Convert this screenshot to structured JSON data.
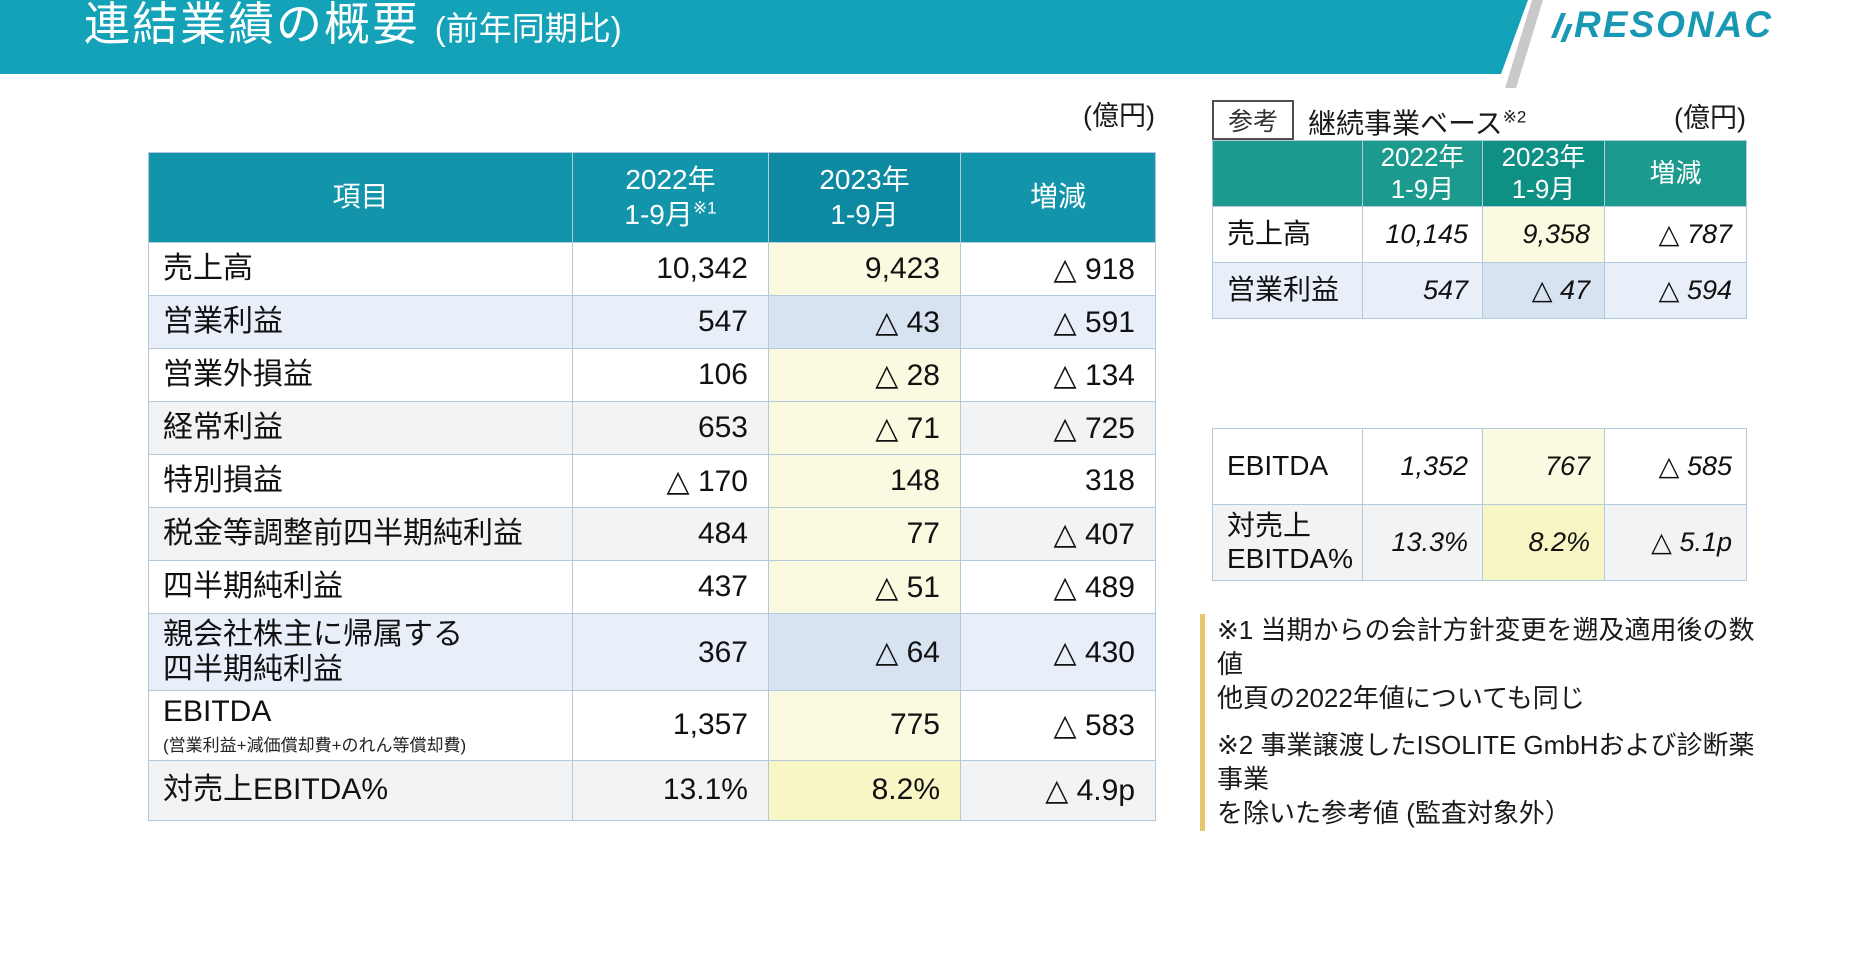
{
  "header": {
    "title": "連結業績の概要",
    "subtitle": "(前年同期比)",
    "logo": "RESONAC"
  },
  "colors": {
    "titlebar_teal": "#14a2b8",
    "main_header_teal": "#1295aa",
    "main_header_teal_dark": "#0d8aa2",
    "ref_header_green": "#1b9a8d",
    "ref_header_green_dark": "#0f9084",
    "highlight_yellow": "#fbfae1",
    "highlight_yellow_strong": "#f9f6c5",
    "highlight_blue_row": "#e8eff9",
    "highlight_blue_cell": "#d8e3f2",
    "zebra_gray": "#f2f3f5",
    "footnote_bar": "#e8c96a"
  },
  "unit_left": "(億円)",
  "unit_right": "(億円)",
  "ref_badge": "参考",
  "ref_caption": "継続事業ベース",
  "ref_caption_sup": "※2",
  "main_table": {
    "header": {
      "item": "項目",
      "y2022_l1": "2022年",
      "y2022_l2": "1-9月",
      "y2022_sup": "※1",
      "y2023_l1": "2023年",
      "y2023_l2": "1-9月",
      "change": "増減"
    },
    "rows": [
      {
        "label": "売上高",
        "y2022": "10,342",
        "y2023": "9,423",
        "change": "△ 918",
        "tone": "white",
        "hl": "y"
      },
      {
        "label": "営業利益",
        "y2022": "547",
        "y2023": "△ 43",
        "change": "△ 591",
        "tone": "blue",
        "hl": "b"
      },
      {
        "label": "営業外損益",
        "y2022": "106",
        "y2023": "△ 28",
        "change": "△ 134",
        "tone": "white",
        "hl": "y"
      },
      {
        "label": "経常利益",
        "y2022": "653",
        "y2023": "△ 71",
        "change": "△ 725",
        "tone": "gray",
        "hl": "y"
      },
      {
        "label": "特別損益",
        "y2022": "△ 170",
        "y2023": "148",
        "change": "318",
        "tone": "white",
        "hl": "y"
      },
      {
        "label": "税金等調整前四半期純利益",
        "y2022": "484",
        "y2023": "77",
        "change": "△ 407",
        "tone": "gray",
        "hl": "y"
      },
      {
        "label": "四半期純利益",
        "y2022": "437",
        "y2023": "△ 51",
        "change": "△ 489",
        "tone": "white",
        "hl": "y"
      },
      {
        "label": "親会社株主に帰属する\n四半期純利益",
        "y2022": "367",
        "y2023": "△ 64",
        "change": "△ 430",
        "tone": "blue",
        "hl": "b"
      }
    ]
  },
  "ebitda_table": {
    "rows": [
      {
        "label": "EBITDA",
        "sublabel": "(営業利益+減価償却費+のれん等償却費)",
        "y2022": "1,357",
        "y2023": "775",
        "change": "△ 583",
        "tone": "white",
        "hl": "y"
      },
      {
        "label": "対売上EBITDA%",
        "y2022": "13.1%",
        "y2023": "8.2%",
        "change": "△ 4.9p",
        "tone": "gray",
        "hl": "ys"
      }
    ]
  },
  "ref_table": {
    "header": {
      "item": "",
      "y2022_l1": "2022年",
      "y2022_l2": "1-9月",
      "y2023_l1": "2023年",
      "y2023_l2": "1-9月",
      "change": "増減"
    },
    "rows": [
      {
        "label": "売上高",
        "y2022": "10,145",
        "y2023": "9,358",
        "change": "△ 787",
        "tone": "white",
        "hl": "y"
      },
      {
        "label": "営業利益",
        "y2022": "547",
        "y2023": "△ 47",
        "change": "△ 594",
        "tone": "blue",
        "hl": "b"
      }
    ]
  },
  "ref_ebitda_table": {
    "rows": [
      {
        "label": "EBITDA",
        "y2022": "1,352",
        "y2023": "767",
        "change": "△ 585",
        "tone": "white",
        "hl": "y"
      },
      {
        "label": "対売上\nEBITDA%",
        "y2022": "13.3%",
        "y2023": "8.2%",
        "change": "△ 5.1p",
        "tone": "gray",
        "hl": "ys"
      }
    ]
  },
  "footnotes": [
    "※1 当期からの会計方針変更を遡及適用後の数値\n他頁の2022年値についても同じ",
    "※2 事業譲渡したISOLITE GmbHおよび診断薬事業\nを除いた参考値 (監査対象外）"
  ]
}
